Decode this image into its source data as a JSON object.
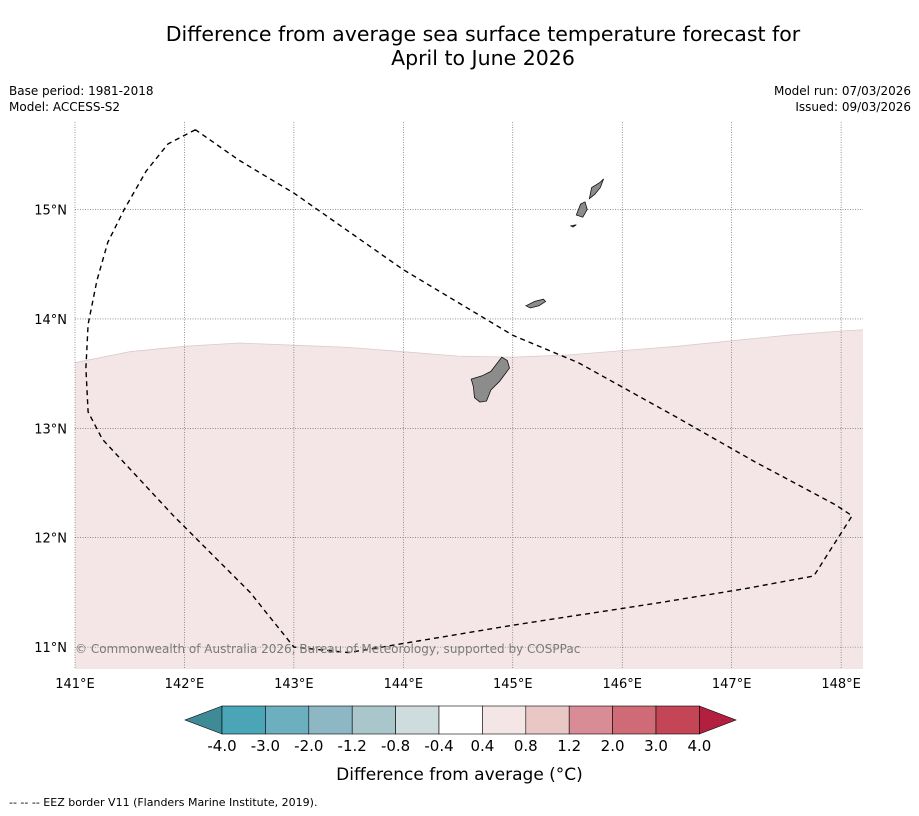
{
  "title": {
    "line1": "Difference from average sea surface temperature forecast for",
    "line2": "April to June 2026"
  },
  "info_left": {
    "base_period": "Base period: 1981-2018",
    "model": "Model: ACCESS-S2"
  },
  "info_right": {
    "model_run": "Model run: 07/03/2026",
    "issued": "Issued: 09/03/2026"
  },
  "map": {
    "lon_range": [
      141,
      148.2
    ],
    "lat_range": [
      10.8,
      15.8
    ],
    "lon_ticks": [
      141,
      142,
      143,
      144,
      145,
      146,
      147,
      148
    ],
    "lon_labels": [
      "141°E",
      "142°E",
      "143°E",
      "144°E",
      "145°E",
      "146°E",
      "147°E",
      "148°E"
    ],
    "lat_ticks": [
      11,
      12,
      13,
      14,
      15
    ],
    "lat_labels": [
      "11°N",
      "12°N",
      "13°N",
      "14°N",
      "15°N"
    ],
    "background_color": "#ffffff",
    "anomaly_color": "#f4e6e6",
    "anomaly_boundary": [
      [
        141,
        13.6
      ],
      [
        141.5,
        13.7
      ],
      [
        142,
        13.75
      ],
      [
        142.5,
        13.78
      ],
      [
        143,
        13.76
      ],
      [
        143.5,
        13.74
      ],
      [
        144,
        13.7
      ],
      [
        144.5,
        13.66
      ],
      [
        145,
        13.65
      ],
      [
        145.5,
        13.67
      ],
      [
        146,
        13.71
      ],
      [
        146.5,
        13.75
      ],
      [
        147,
        13.8
      ],
      [
        147.5,
        13.85
      ],
      [
        148,
        13.89
      ],
      [
        148.2,
        13.9
      ]
    ],
    "copyright": "© Commonwealth of Australia 2026, Bureau of Meteorology, supported by COSPPac",
    "land_color": "#8c8c8c"
  },
  "eez_border": [
    [
      142.1,
      15.73
    ],
    [
      141.85,
      15.6
    ],
    [
      141.65,
      15.35
    ],
    [
      141.45,
      15.0
    ],
    [
      141.3,
      14.7
    ],
    [
      141.2,
      14.35
    ],
    [
      141.12,
      13.95
    ],
    [
      141.1,
      13.55
    ],
    [
      141.12,
      13.15
    ],
    [
      141.25,
      12.9
    ],
    [
      141.9,
      12.2
    ],
    [
      142.6,
      11.5
    ],
    [
      143.0,
      11.0
    ],
    [
      143.5,
      10.95
    ],
    [
      145.0,
      11.2
    ],
    [
      146.3,
      11.4
    ],
    [
      147.1,
      11.53
    ],
    [
      147.75,
      11.65
    ],
    [
      148.1,
      12.2
    ],
    [
      147.95,
      12.3
    ],
    [
      147.2,
      12.7
    ],
    [
      146.5,
      13.1
    ],
    [
      145.6,
      13.6
    ],
    [
      145.0,
      13.85
    ],
    [
      144.5,
      14.15
    ],
    [
      144.0,
      14.45
    ],
    [
      143.5,
      14.8
    ],
    [
      143.0,
      15.15
    ],
    [
      142.5,
      15.45
    ],
    [
      142.1,
      15.73
    ]
  ],
  "islands": [
    {
      "name": "Guam",
      "coords": [
        [
          144.62,
          13.45
        ],
        [
          144.72,
          13.48
        ],
        [
          144.8,
          13.52
        ],
        [
          144.86,
          13.6
        ],
        [
          144.9,
          13.65
        ],
        [
          144.95,
          13.62
        ],
        [
          144.97,
          13.55
        ],
        [
          144.88,
          13.43
        ],
        [
          144.8,
          13.35
        ],
        [
          144.76,
          13.25
        ],
        [
          144.7,
          13.24
        ],
        [
          144.65,
          13.28
        ],
        [
          144.64,
          13.38
        ],
        [
          144.62,
          13.45
        ]
      ]
    },
    {
      "name": "Rota",
      "coords": [
        [
          145.12,
          14.12
        ],
        [
          145.2,
          14.16
        ],
        [
          145.28,
          14.18
        ],
        [
          145.3,
          14.16
        ],
        [
          145.24,
          14.12
        ],
        [
          145.16,
          14.1
        ],
        [
          145.12,
          14.12
        ]
      ]
    },
    {
      "name": "Tinian",
      "coords": [
        [
          145.58,
          14.95
        ],
        [
          145.62,
          15.05
        ],
        [
          145.66,
          15.07
        ],
        [
          145.68,
          15.0
        ],
        [
          145.64,
          14.93
        ],
        [
          145.58,
          14.95
        ]
      ]
    },
    {
      "name": "Saipan",
      "coords": [
        [
          145.7,
          15.1
        ],
        [
          145.72,
          15.2
        ],
        [
          145.8,
          15.25
        ],
        [
          145.83,
          15.28
        ],
        [
          145.8,
          15.2
        ],
        [
          145.75,
          15.14
        ],
        [
          145.7,
          15.1
        ]
      ]
    },
    {
      "name": "Aguijan",
      "coords": [
        [
          145.53,
          14.85
        ],
        [
          145.58,
          14.86
        ],
        [
          145.55,
          14.84
        ],
        [
          145.53,
          14.85
        ]
      ]
    }
  ],
  "colorbar": {
    "labels": [
      "-4.0",
      "-3.0",
      "-2.0",
      "-1.2",
      "-0.8",
      "-0.4",
      "0.4",
      "0.8",
      "1.2",
      "2.0",
      "3.0",
      "4.0"
    ],
    "colors": [
      "#3e8a97",
      "#4aa6b6",
      "#6cb0bf",
      "#8db7c3",
      "#a9c7cb",
      "#cfdcdd",
      "#ffffff",
      "#f4e6e6",
      "#e8c7c4",
      "#d98b96",
      "#cf6b77",
      "#c44656",
      "#b21f3f"
    ],
    "label": "Difference from average (°C)"
  },
  "footnote": "--  --  -- EEZ border V11 (Flanders Marine Institute, 2019)."
}
